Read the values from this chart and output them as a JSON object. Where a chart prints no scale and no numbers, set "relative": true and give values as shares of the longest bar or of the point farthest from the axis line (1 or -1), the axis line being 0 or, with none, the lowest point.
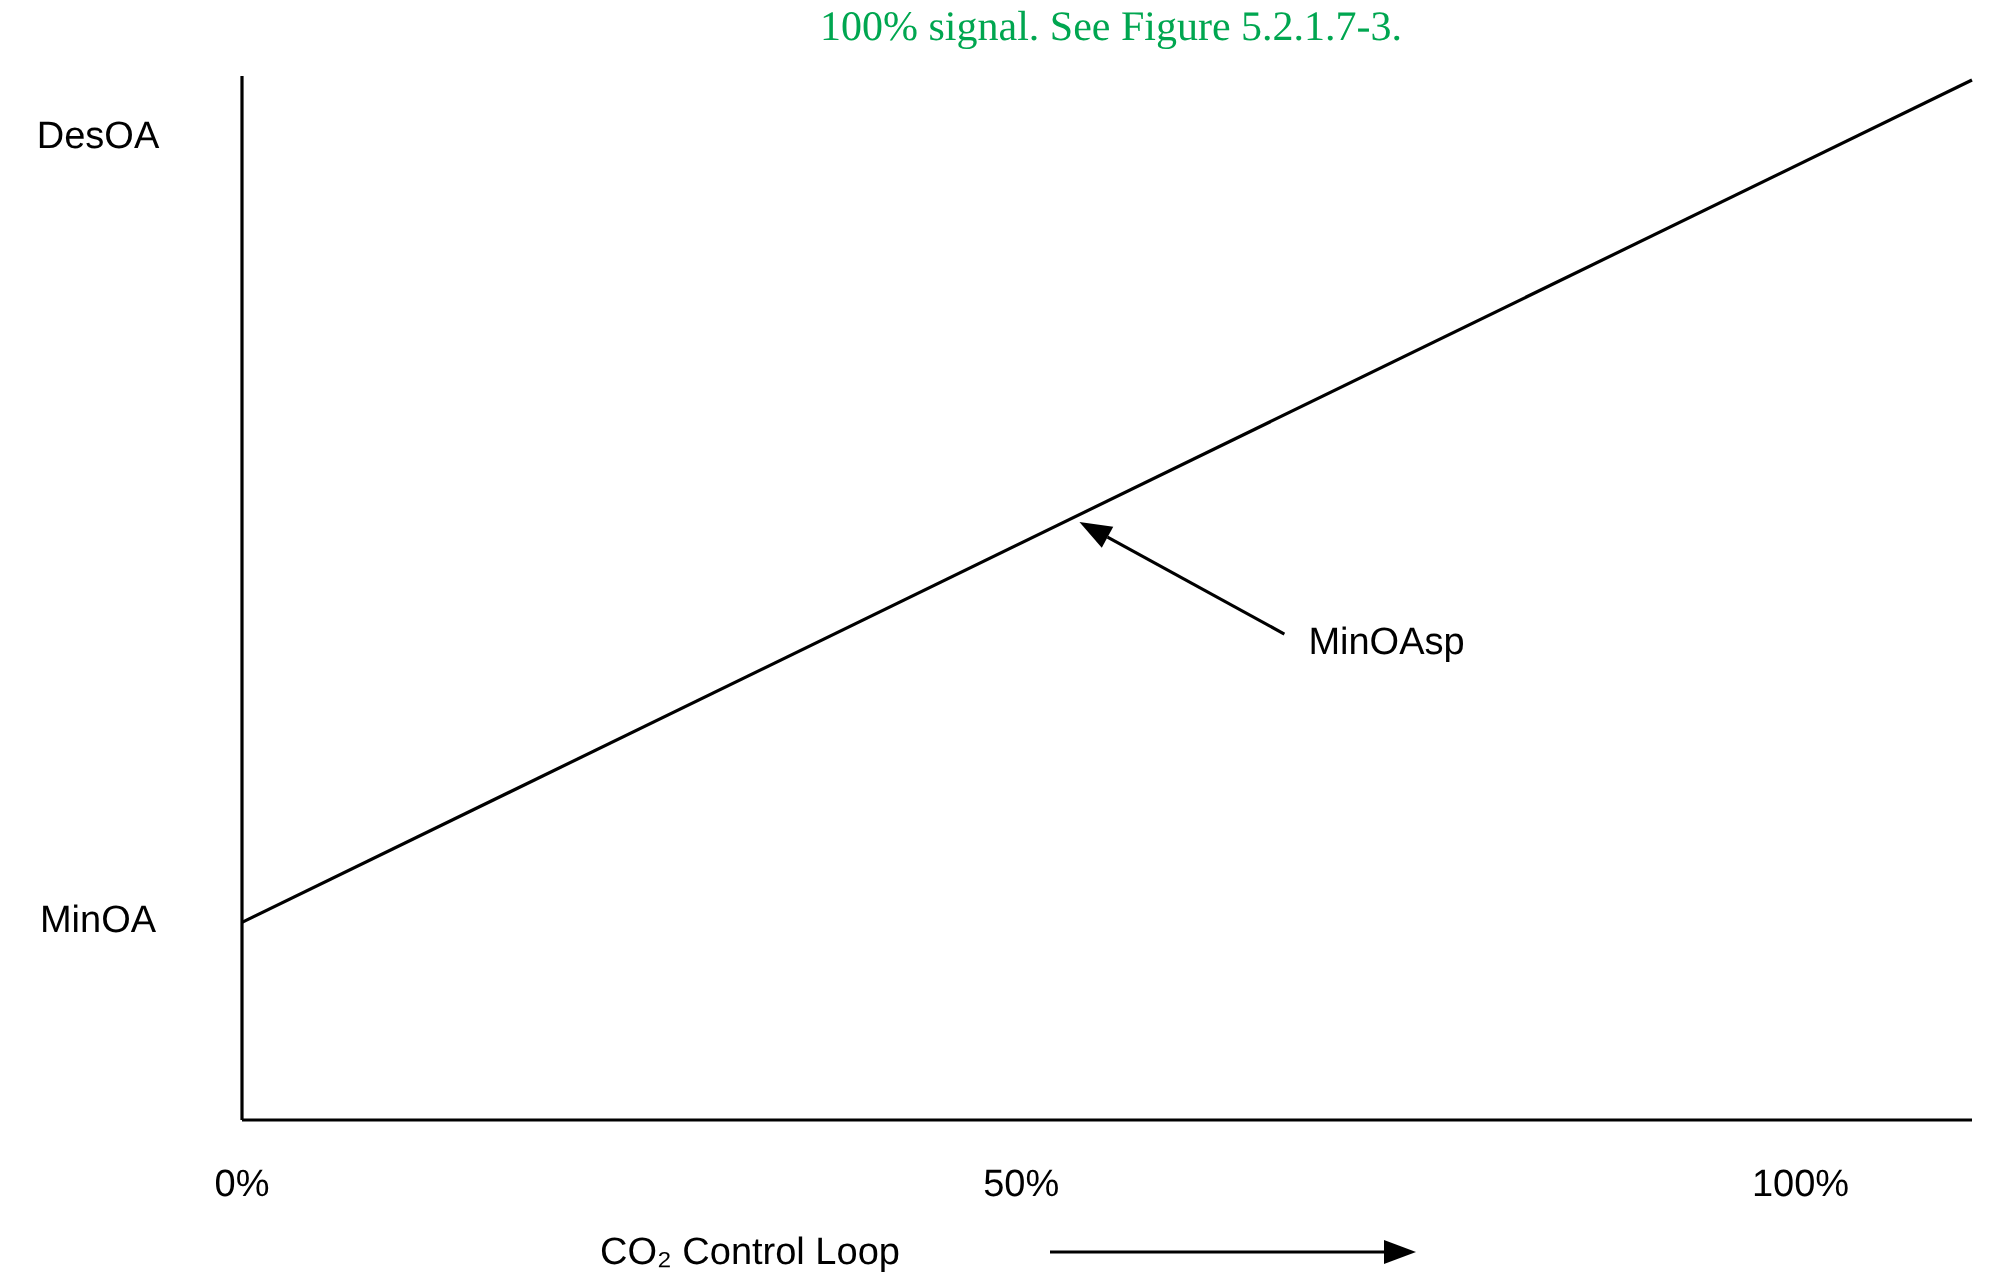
{
  "chart_data": {
    "type": "line",
    "xlabel": "CO₂ Control Loop",
    "relative": true,
    "x": [
      0,
      111
    ],
    "values": [
      0.19,
      1
    ],
    "color": "#000000",
    "xlim": [
      0,
      111
    ],
    "xticks": [
      {
        "value": 0,
        "label": "0%"
      },
      {
        "value": 50,
        "label": "50%"
      },
      {
        "value": 100,
        "label": "100%"
      }
    ],
    "marker": "none",
    "line_style": "solid",
    "annotations": [
      "100% signal. See Figure 5.2.1.7-3.",
      "DesOA",
      "MinOA",
      "MinOAsp"
    ]
  }
}
